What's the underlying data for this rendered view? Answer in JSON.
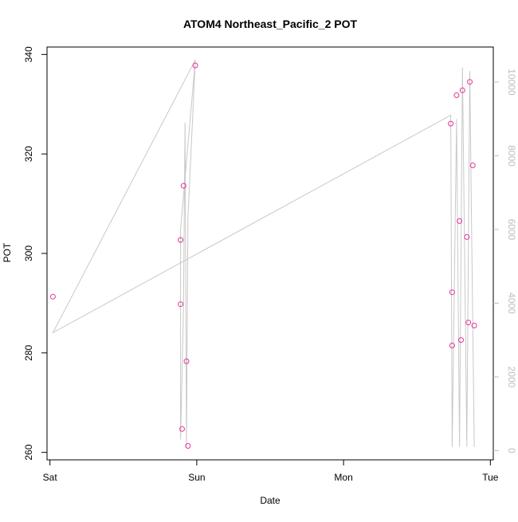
{
  "chart_data": {
    "type": "scatter",
    "title": "ATOM4 Northeast_Pacific_2 POT",
    "xlabel": "Date",
    "ylabel": "POT",
    "x_ticks": [
      "Sat",
      "Sun",
      "Mon",
      "Tue"
    ],
    "xlim": [
      -0.02,
      3.02
    ],
    "ylim_left": [
      258.5,
      341.5
    ],
    "y_ticks_left": [
      260,
      280,
      300,
      320,
      340
    ],
    "ylim_right": [
      -250,
      10950
    ],
    "y_ticks_right": [
      0,
      2000,
      4000,
      6000,
      8000,
      10000
    ],
    "colors": {
      "points": "#e8339a",
      "line": "#c8c8c8",
      "right_axis": "#bdbdbd",
      "frame": "#000000"
    },
    "series": [
      {
        "axis": "left",
        "marker": "circle",
        "x": [
          0.02,
          0.89,
          0.89,
          0.9,
          0.91,
          0.93,
          0.94,
          0.99,
          2.73,
          2.74,
          2.74,
          2.77,
          2.79,
          2.8,
          2.81,
          2.84,
          2.85,
          2.86,
          2.88,
          2.89
        ],
        "y": [
          291.3,
          302.7,
          289.8,
          264.7,
          313.6,
          278.3,
          261.3,
          337.8,
          326.1,
          292.2,
          281.5,
          331.8,
          306.5,
          282.6,
          332.8,
          303.3,
          286.1,
          334.5,
          317.7,
          285.5
        ]
      },
      {
        "axis": "right",
        "style": "line",
        "x": [
          0.02,
          0.99,
          0.89,
          0.89,
          0.9,
          0.91,
          0.92,
          0.93,
          0.94,
          0.99,
          0.02,
          2.73,
          2.74,
          2.77,
          2.79,
          2.81,
          2.84,
          2.86,
          2.87,
          2.89
        ],
        "y": [
          3200,
          10600,
          6000,
          300,
          2100,
          4000,
          8900,
          100,
          6300,
          10600,
          3200,
          9100,
          100,
          9000,
          100,
          10400,
          100,
          10300,
          6700,
          100
        ]
      }
    ]
  }
}
